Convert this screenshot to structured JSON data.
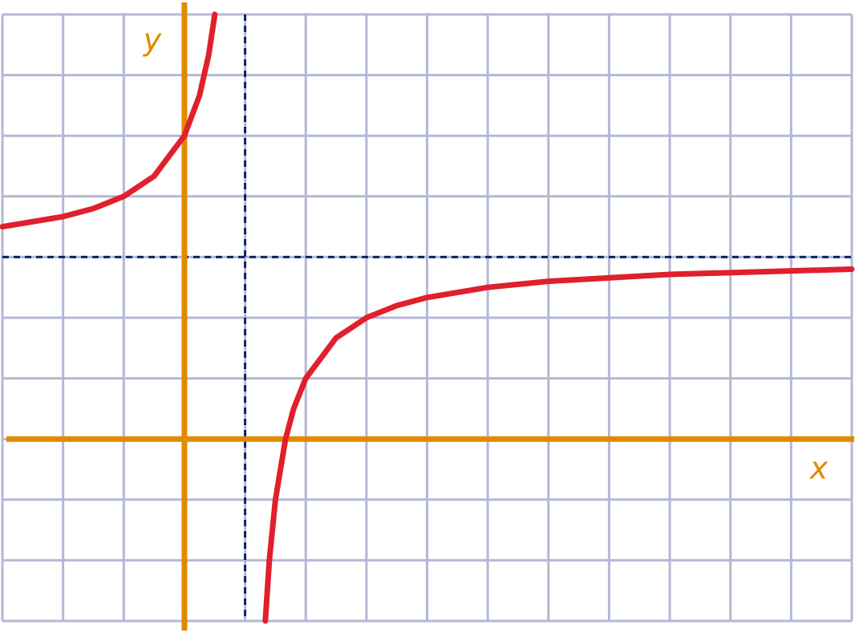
{
  "chart_data": {
    "type": "line",
    "x_label": "x",
    "y_label": "y",
    "x": [
      -3,
      -2,
      -1.5,
      -1,
      -0.5,
      0,
      0.25,
      0.4,
      0.5,
      null,
      1.333,
      1.4,
      1.5,
      1.667,
      1.8,
      2,
      2.5,
      3,
      3.5,
      4,
      5,
      6,
      8,
      11
    ],
    "values": [
      3.5,
      3.667,
      3.8,
      4,
      4.333,
      5,
      5.667,
      6.333,
      7,
      null,
      -3,
      -2,
      -1,
      0,
      0.5,
      1,
      1.667,
      2,
      2.2,
      2.333,
      2.5,
      2.6,
      2.714,
      2.8
    ],
    "color": "#e0202c",
    "xlim": [
      -3,
      11
    ],
    "ylim": [
      -3,
      7
    ],
    "xticks": [
      -3,
      -2,
      -1,
      0,
      1,
      2,
      3,
      4,
      5,
      6,
      7,
      8,
      9,
      10,
      11
    ],
    "yticks": [
      -3,
      -2,
      -1,
      0,
      1,
      2,
      3,
      4,
      5,
      6,
      7
    ],
    "grid": true,
    "vertical_asymptote": 1,
    "horizontal_asymptote": 3
  }
}
